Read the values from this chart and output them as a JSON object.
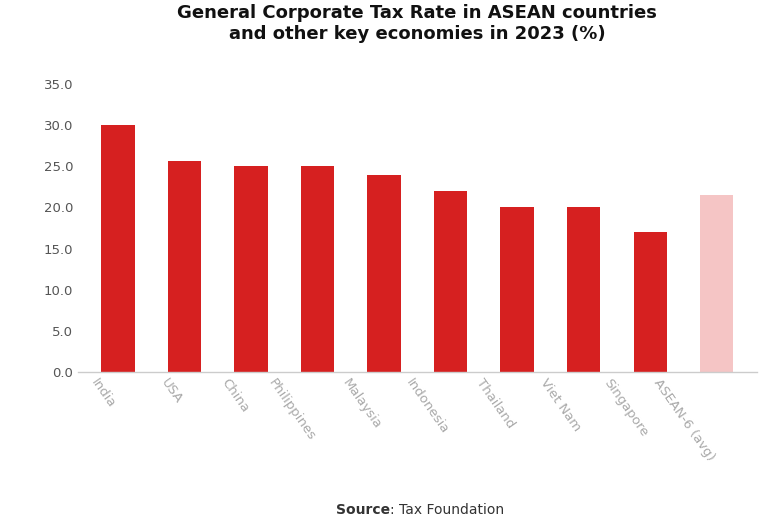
{
  "title": "General Corporate Tax Rate in ASEAN countries\nand other key economies in 2023 (%)",
  "categories": [
    "India",
    "USA",
    "China",
    "Philippines",
    "Malaysia",
    "Indonesia",
    "Thailand",
    "Viet Nam",
    "Singapore",
    "ASEAN-6 (avg)"
  ],
  "values": [
    30.0,
    25.7,
    25.0,
    25.0,
    24.0,
    22.0,
    20.0,
    20.0,
    17.0,
    21.5
  ],
  "bar_colors": [
    "#d62020",
    "#d62020",
    "#d62020",
    "#d62020",
    "#d62020",
    "#d62020",
    "#d62020",
    "#d62020",
    "#d62020",
    "#f5c5c5"
  ],
  "ylim": [
    0,
    37.5
  ],
  "yticks": [
    0.0,
    5.0,
    10.0,
    15.0,
    20.0,
    25.0,
    30.0,
    35.0
  ],
  "source_bold": "Source",
  "source_rest": ": Tax Foundation",
  "background_color": "#ffffff",
  "title_fontsize": 13,
  "tick_fontsize": 9.5,
  "source_fontsize": 10,
  "xlabel_color": "#aaaaaa",
  "ylabel_color": "#555555",
  "axis_color": "#cccccc"
}
